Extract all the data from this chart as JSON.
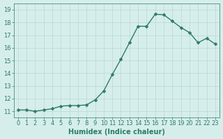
{
  "x": [
    0,
    1,
    2,
    3,
    4,
    5,
    6,
    7,
    8,
    9,
    10,
    11,
    12,
    13,
    14,
    15,
    16,
    17,
    18,
    19,
    20,
    21,
    22,
    23
  ],
  "y": [
    11.1,
    11.1,
    11.0,
    11.1,
    11.2,
    11.4,
    11.45,
    11.45,
    11.5,
    11.9,
    12.6,
    13.9,
    15.1,
    16.4,
    17.7,
    17.7,
    18.65,
    18.6,
    18.1,
    17.6,
    17.2,
    16.4,
    16.75,
    16.3
  ],
  "line_color": "#2d7a6b",
  "marker": "D",
  "marker_size": 2.5,
  "line_width": 1.0,
  "xlabel": "Humidex (Indice chaleur)",
  "xlabel_fontsize": 7,
  "xlabel_color": "#2d7a6b",
  "xlabel_bold": true,
  "yticks": [
    11,
    12,
    13,
    14,
    15,
    16,
    17,
    18,
    19
  ],
  "xticks": [
    0,
    1,
    2,
    3,
    4,
    5,
    6,
    7,
    8,
    9,
    10,
    11,
    12,
    13,
    14,
    15,
    16,
    17,
    18,
    19,
    20,
    21,
    22,
    23
  ],
  "ylim": [
    10.5,
    19.5
  ],
  "xlim": [
    -0.5,
    23.5
  ],
  "bg_color": "#d6eeeb",
  "grid_color": "#b8d8d2",
  "tick_color": "#2d7a6b",
  "tick_fontsize": 6,
  "tick_label_color": "#2d7a6b",
  "figsize": [
    3.2,
    2.0
  ],
  "dpi": 100
}
